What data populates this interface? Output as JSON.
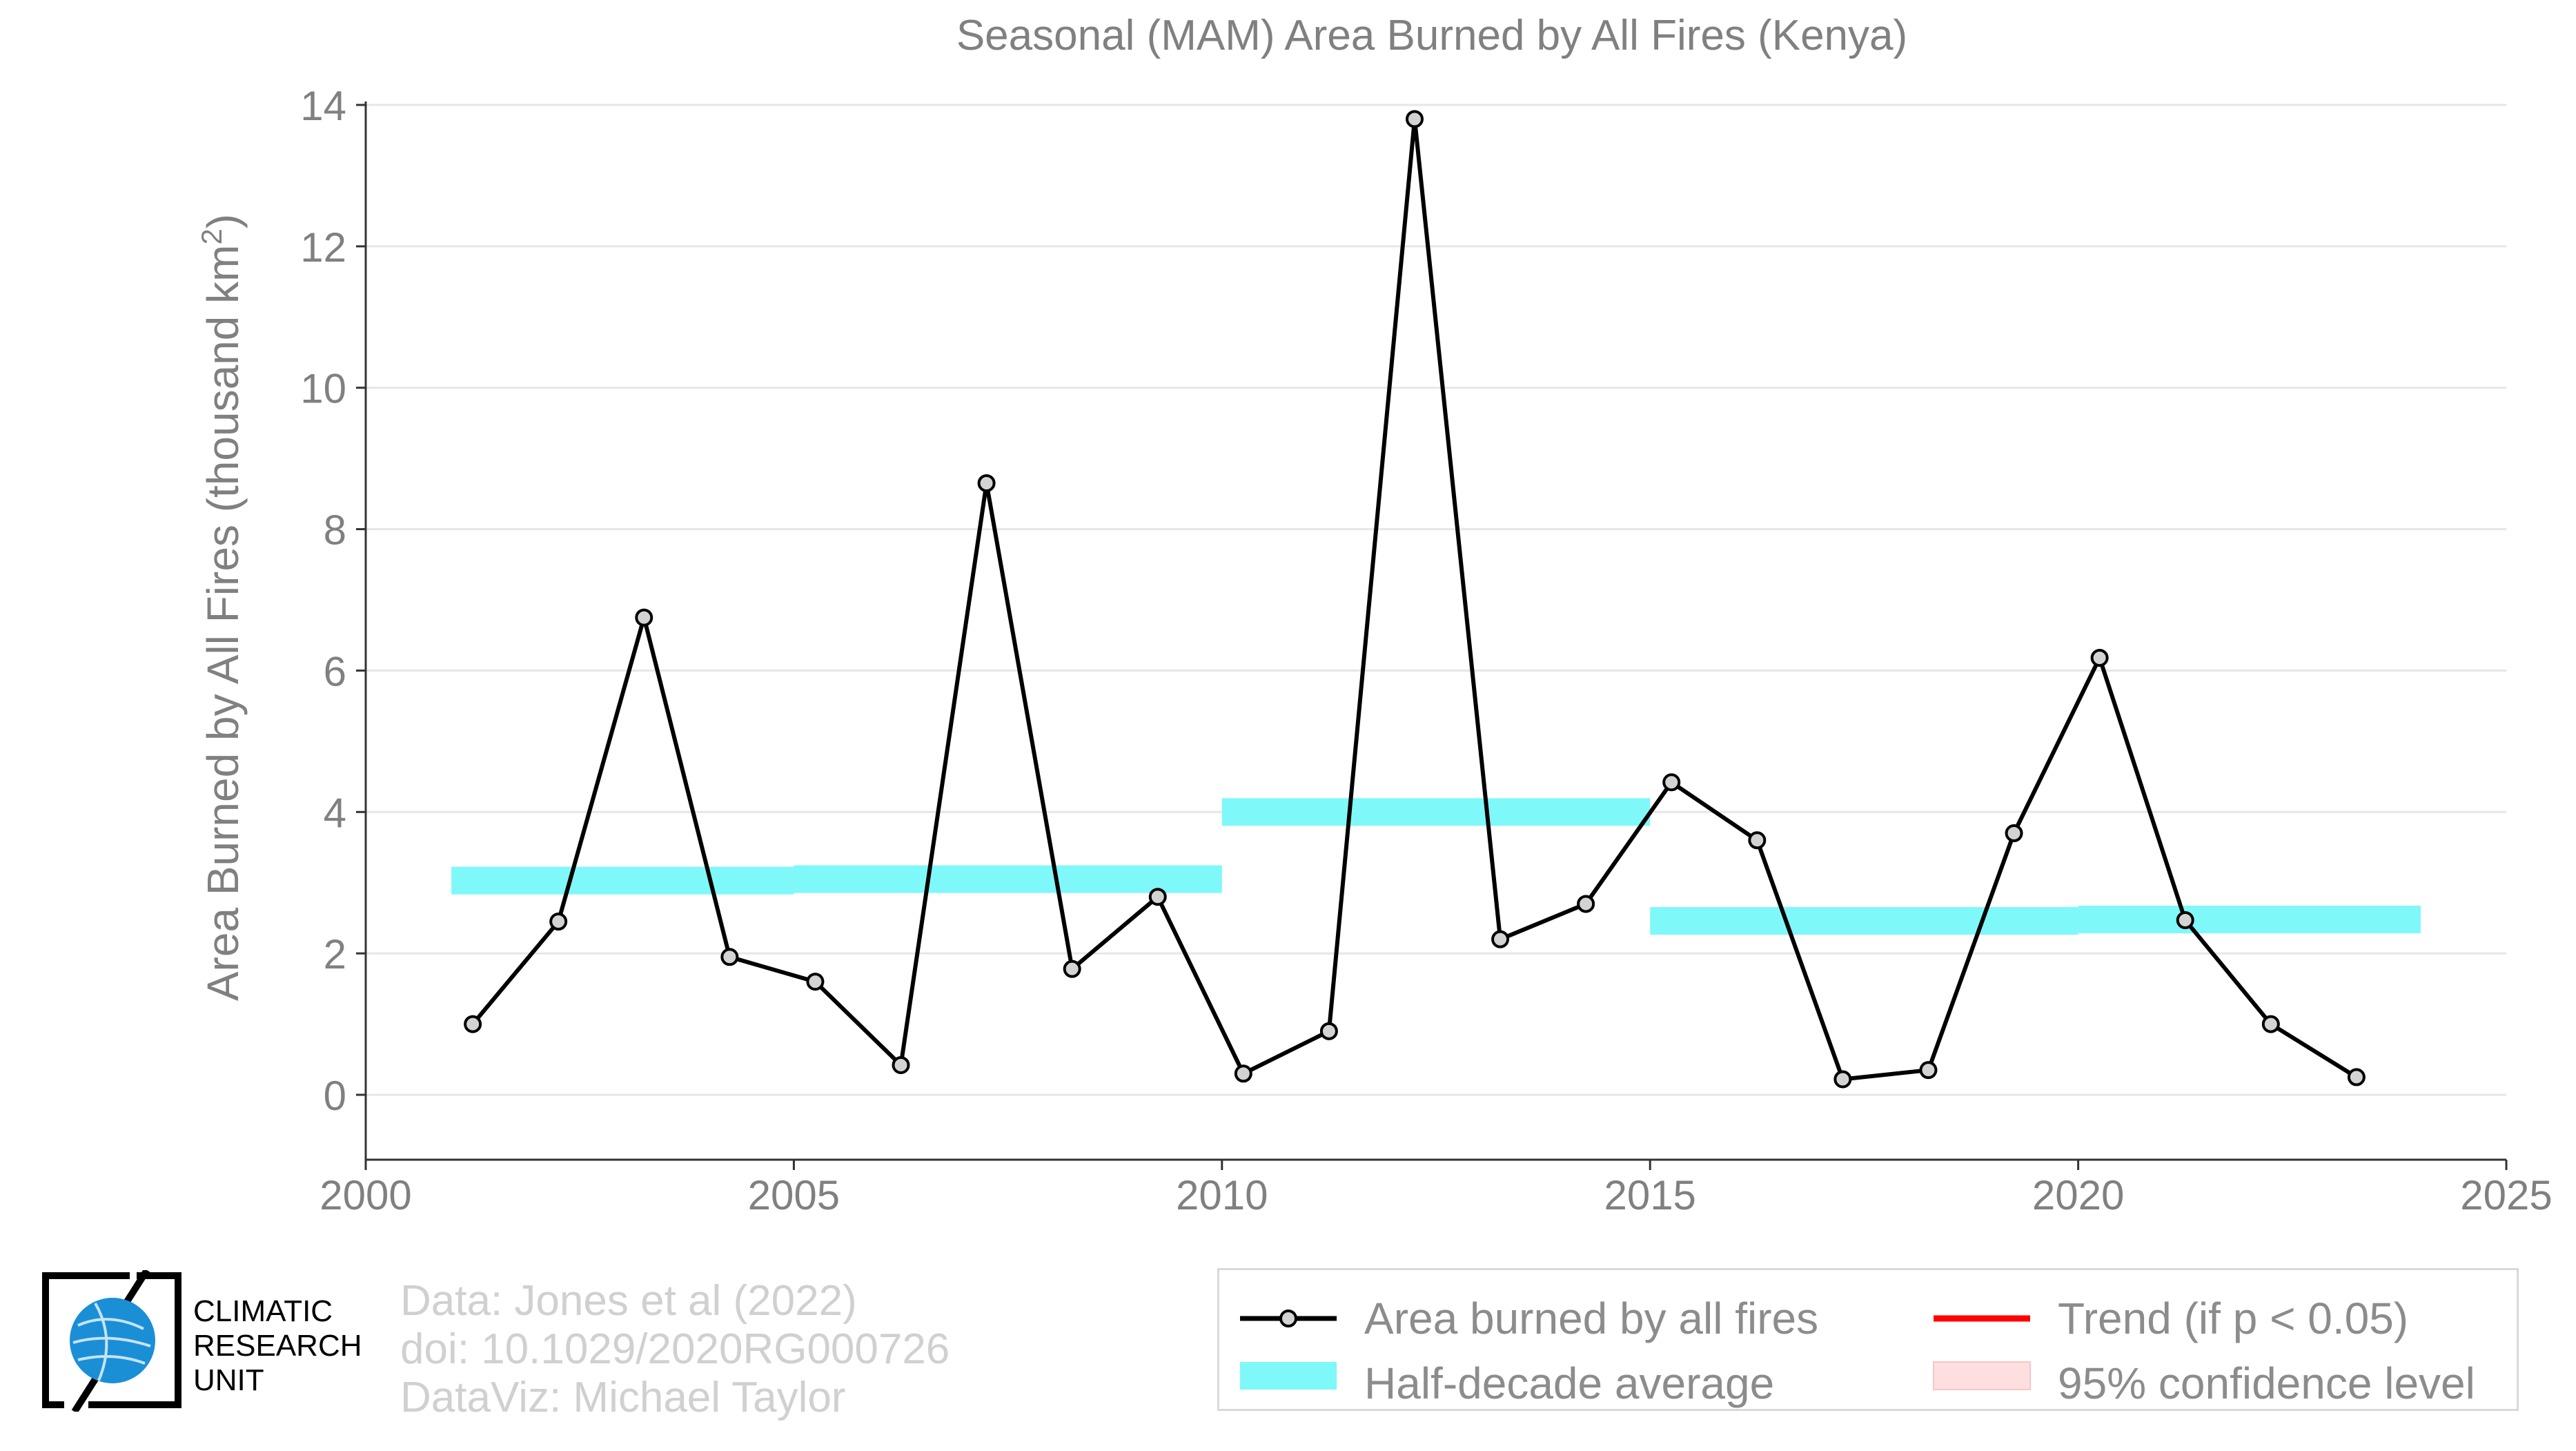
{
  "chart_data": {
    "type": "line",
    "title": "Seasonal (MAM) Area Burned by All Fires (Kenya)",
    "xlabel": "",
    "ylabel": "Area Burned by All Fires (thousand km",
    "ylabel_superscript": "2",
    "ylabel_suffix": ")",
    "xlim": [
      2000,
      2025
    ],
    "ylim": [
      0,
      14
    ],
    "x_ticks": [
      2000,
      2005,
      2010,
      2015,
      2020,
      2025
    ],
    "y_ticks": [
      0,
      2,
      4,
      6,
      8,
      10,
      12,
      14
    ],
    "grid": "horizontal",
    "series": [
      {
        "name": "Area burned by all fires",
        "color": "#000000",
        "marker_fill": "#d3d3d3",
        "x": [
          2001.25,
          2002.25,
          2003.25,
          2004.25,
          2005.25,
          2006.25,
          2007.25,
          2008.25,
          2009.25,
          2010.25,
          2011.25,
          2012.25,
          2013.25,
          2014.25,
          2015.25,
          2016.25,
          2017.25,
          2018.25,
          2019.25,
          2020.25,
          2021.25,
          2022.25,
          2023.25
        ],
        "values": [
          1.0,
          2.45,
          6.75,
          1.95,
          1.6,
          0.42,
          8.65,
          1.78,
          2.8,
          0.3,
          0.9,
          13.8,
          2.2,
          2.7,
          4.42,
          3.6,
          0.22,
          0.35,
          3.7,
          6.18,
          2.47,
          1.0,
          0.25
        ]
      }
    ],
    "half_decade_average": {
      "name": "Half-decade average",
      "color": "#7ff8f9",
      "segments": [
        {
          "start": 2001,
          "end": 2005,
          "value": 3.03
        },
        {
          "start": 2005,
          "end": 2010,
          "value": 3.05
        },
        {
          "start": 2010,
          "end": 2015,
          "value": 4.0
        },
        {
          "start": 2015,
          "end": 2020,
          "value": 2.46
        },
        {
          "start": 2020,
          "end": 2024,
          "value": 2.48
        }
      ]
    },
    "legend": [
      {
        "label": "Area burned by all fires",
        "kind": "line-marker",
        "color": "#000000"
      },
      {
        "label": "Trend (if p < 0.05)",
        "kind": "line",
        "color": "#ff0000"
      },
      {
        "label": "Half-decade average",
        "kind": "band",
        "color": "#7ff8f9"
      },
      {
        "label": "95% confidence level",
        "kind": "band",
        "color": "#fddfe0"
      }
    ],
    "legend_position": "bottom-right"
  },
  "credits": {
    "data": "Data: Jones et al (2022)",
    "doi": "doi: 10.1029/2020RG000726",
    "dataviz": "DataViz: Michael Taylor"
  },
  "logo": {
    "line1": "CLIMATIC",
    "line2": "RESEARCH",
    "line3": "UNIT"
  },
  "colors": {
    "text_gray": "#808080",
    "grid": "#e6e6e6",
    "logo_blue": "#1a8fd6"
  }
}
